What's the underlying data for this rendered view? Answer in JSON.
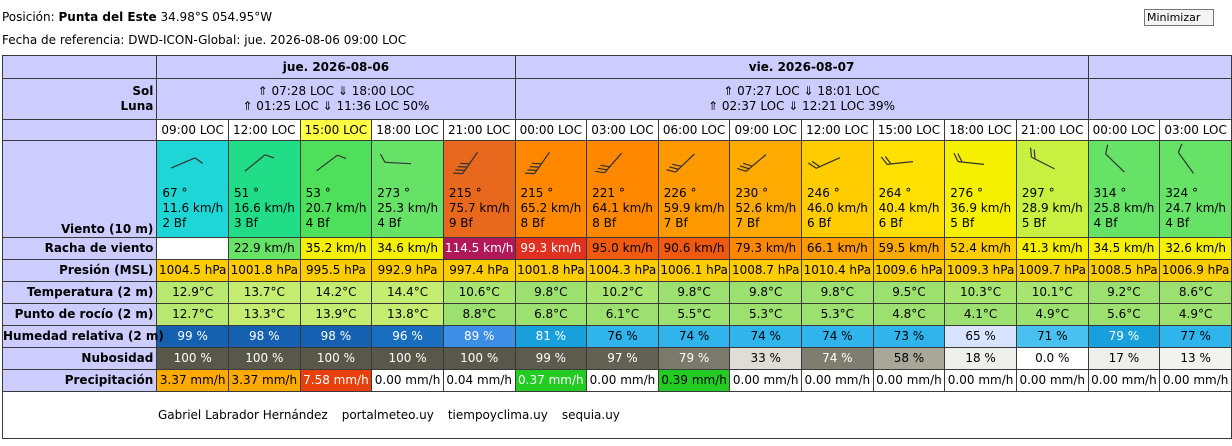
{
  "header": {
    "position_label": "Posición:",
    "position_name": "Punta del Este",
    "position_coords": "34.98°S 054.95°W",
    "reference_label": "Fecha de referencia:",
    "reference_value": "DWD-ICON-Global: jue. 2026-08-06 09:00 LOC",
    "minimize_button": "Minimizar"
  },
  "row_labels": {
    "sun_label": "Sol",
    "moon_label": "Luna",
    "wind": "Viento (10 m)",
    "gust": "Racha de viento",
    "pressure": "Presión (MSL)",
    "temperature": "Temperatura (2 m)",
    "dewpoint": "Punto de rocío (2 m)",
    "humidity": "Humedad relativa (2 m)",
    "cloud": "Nubosidad",
    "precip": "Precipitación"
  },
  "days": [
    {
      "label": "jue. 2026-08-06",
      "sun": "⇑ 07:28 LOC ⇓ 18:00 LOC",
      "moon": "⇑ 01:25 LOC ⇓ 11:36 LOC  50%"
    },
    {
      "label": "vie. 2026-08-07",
      "sun": "⇑ 07:27 LOC ⇓ 18:01 LOC",
      "moon": "⇑ 02:37 LOC ⇓ 12:21 LOC  39%"
    }
  ],
  "times": [
    "09:00 LOC",
    "12:00 LOC",
    "15:00 LOC",
    "18:00 LOC",
    "21:00 LOC",
    "00:00 LOC",
    "03:00 LOC",
    "06:00 LOC",
    "09:00 LOC",
    "12:00 LOC",
    "15:00 LOC",
    "18:00 LOC",
    "21:00 LOC",
    "00:00 LOC",
    "03:00 LOC"
  ],
  "wind": [
    {
      "dir": "67 °",
      "dir_deg": 67,
      "speed": "11.6  km/h",
      "bf": "2 Bf",
      "color": "#1fd6d6"
    },
    {
      "dir": "51 °",
      "dir_deg": 51,
      "speed": "16.6  km/h",
      "bf": "3 Bf",
      "color": "#22dd88"
    },
    {
      "dir": "53 °",
      "dir_deg": 53,
      "speed": "20.7  km/h",
      "bf": "4 Bf",
      "color": "#4ee05a"
    },
    {
      "dir": "273 °",
      "dir_deg": 273,
      "speed": "25.3  km/h",
      "bf": "4 Bf",
      "color": "#66e366"
    },
    {
      "dir": "215 °",
      "dir_deg": 215,
      "speed": "75.7  km/h",
      "bf": "9 Bf",
      "color": "#e8691e"
    },
    {
      "dir": "215 °",
      "dir_deg": 215,
      "speed": "65.2  km/h",
      "bf": "8 Bf",
      "color": "#ff8800"
    },
    {
      "dir": "221 °",
      "dir_deg": 221,
      "speed": "64.1  km/h",
      "bf": "8 Bf",
      "color": "#ff8800"
    },
    {
      "dir": "226 °",
      "dir_deg": 226,
      "speed": "59.9  km/h",
      "bf": "7 Bf",
      "color": "#ff9900"
    },
    {
      "dir": "230 °",
      "dir_deg": 230,
      "speed": "52.6  km/h",
      "bf": "7 Bf",
      "color": "#ffaa00"
    },
    {
      "dir": "246 °",
      "dir_deg": 246,
      "speed": "46.0  km/h",
      "bf": "6 Bf",
      "color": "#ffcc00"
    },
    {
      "dir": "264 °",
      "dir_deg": 264,
      "speed": "40.4  km/h",
      "bf": "6 Bf",
      "color": "#ffe000"
    },
    {
      "dir": "276 °",
      "dir_deg": 276,
      "speed": "36.9  km/h",
      "bf": "5 Bf",
      "color": "#f4f000"
    },
    {
      "dir": "297 °",
      "dir_deg": 297,
      "speed": "28.9  km/h",
      "bf": "5 Bf",
      "color": "#c8f040"
    },
    {
      "dir": "314 °",
      "dir_deg": 314,
      "speed": "25.8  km/h",
      "bf": "4 Bf",
      "color": "#66e366"
    },
    {
      "dir": "324 °",
      "dir_deg": 324,
      "speed": "24.7  km/h",
      "bf": "4 Bf",
      "color": "#66e366"
    }
  ],
  "gust": [
    {
      "v": "",
      "bg": "#ffffff",
      "fg": "#000"
    },
    {
      "v": "22.9  km/h",
      "bg": "#66e366",
      "fg": "#000"
    },
    {
      "v": "35.2  km/h",
      "bg": "#f4f000",
      "fg": "#000"
    },
    {
      "v": "34.6  km/h",
      "bg": "#f4f000",
      "fg": "#000"
    },
    {
      "v": "114.5  km/h",
      "bg": "#b0185a",
      "fg": "#fff"
    },
    {
      "v": "99.3  km/h",
      "bg": "#e03020",
      "fg": "#fff"
    },
    {
      "v": "95.0  km/h",
      "bg": "#f05a10",
      "fg": "#000"
    },
    {
      "v": "90.6  km/h",
      "bg": "#f05a10",
      "fg": "#000"
    },
    {
      "v": "79.3  km/h",
      "bg": "#ff8800",
      "fg": "#000"
    },
    {
      "v": "66.1  km/h",
      "bg": "#ff9900",
      "fg": "#000"
    },
    {
      "v": "59.5  km/h",
      "bg": "#ffaa00",
      "fg": "#000"
    },
    {
      "v": "52.4  km/h",
      "bg": "#ffcc00",
      "fg": "#000"
    },
    {
      "v": "41.3  km/h",
      "bg": "#f4f000",
      "fg": "#000"
    },
    {
      "v": "34.5  km/h",
      "bg": "#f4f000",
      "fg": "#000"
    },
    {
      "v": "32.6  km/h",
      "bg": "#f4f000",
      "fg": "#000"
    }
  ],
  "pressure": [
    {
      "v": "1004.5 hPa",
      "bg": "#ffcc00"
    },
    {
      "v": "1001.8 hPa",
      "bg": "#ffcc00"
    },
    {
      "v": "995.5 hPa",
      "bg": "#ffcc00"
    },
    {
      "v": "992.9 hPa",
      "bg": "#ffcc00"
    },
    {
      "v": "997.4 hPa",
      "bg": "#ffcc00"
    },
    {
      "v": "1001.8 hPa",
      "bg": "#ffcc00"
    },
    {
      "v": "1004.3 hPa",
      "bg": "#ffcc00"
    },
    {
      "v": "1006.1 hPa",
      "bg": "#ffcc00"
    },
    {
      "v": "1008.7 hPa",
      "bg": "#ffcc00"
    },
    {
      "v": "1010.4 hPa",
      "bg": "#ffcc00"
    },
    {
      "v": "1009.6 hPa",
      "bg": "#ffcc00"
    },
    {
      "v": "1009.3 hPa",
      "bg": "#ffcc00"
    },
    {
      "v": "1009.7 hPa",
      "bg": "#ffcc00"
    },
    {
      "v": "1008.5 hPa",
      "bg": "#ffcc00"
    },
    {
      "v": "1006.9 hPa",
      "bg": "#ffcc00"
    }
  ],
  "temperature": [
    {
      "v": "12.9°C",
      "bg": "#b8e870"
    },
    {
      "v": "13.7°C",
      "bg": "#c4ec70"
    },
    {
      "v": "14.2°C",
      "bg": "#c4ec70"
    },
    {
      "v": "14.4°C",
      "bg": "#c4ec70"
    },
    {
      "v": "10.6°C",
      "bg": "#a8e470"
    },
    {
      "v": "9.8°C",
      "bg": "#9ce070"
    },
    {
      "v": "10.2°C",
      "bg": "#a8e470"
    },
    {
      "v": "9.8°C",
      "bg": "#9ce070"
    },
    {
      "v": "9.8°C",
      "bg": "#9ce070"
    },
    {
      "v": "9.8°C",
      "bg": "#9ce070"
    },
    {
      "v": "9.5°C",
      "bg": "#9ce070"
    },
    {
      "v": "10.3°C",
      "bg": "#a8e470"
    },
    {
      "v": "10.1°C",
      "bg": "#a8e470"
    },
    {
      "v": "9.2°C",
      "bg": "#9ce070"
    },
    {
      "v": "8.6°C",
      "bg": "#9ce070"
    }
  ],
  "dewpoint": [
    {
      "v": "12.7°C",
      "bg": "#b8e870"
    },
    {
      "v": "13.3°C",
      "bg": "#c4ec70"
    },
    {
      "v": "13.9°C",
      "bg": "#c4ec70"
    },
    {
      "v": "13.8°C",
      "bg": "#c4ec70"
    },
    {
      "v": "8.8°C",
      "bg": "#9ce070"
    },
    {
      "v": "6.8°C",
      "bg": "#9ce070"
    },
    {
      "v": "6.1°C",
      "bg": "#9ce070"
    },
    {
      "v": "5.5°C",
      "bg": "#9ce070"
    },
    {
      "v": "5.3°C",
      "bg": "#9ce070"
    },
    {
      "v": "5.3°C",
      "bg": "#9ce070"
    },
    {
      "v": "4.8°C",
      "bg": "#9ce070"
    },
    {
      "v": "4.1°C",
      "bg": "#9ce070"
    },
    {
      "v": "4.9°C",
      "bg": "#9ce070"
    },
    {
      "v": "5.6°C",
      "bg": "#9ce070"
    },
    {
      "v": "4.9°C",
      "bg": "#9ce070"
    }
  ],
  "humidity": [
    {
      "v": "99 %",
      "bg": "#1560b0",
      "fg": "#fff"
    },
    {
      "v": "98 %",
      "bg": "#1560b0",
      "fg": "#fff"
    },
    {
      "v": "98 %",
      "bg": "#1560b0",
      "fg": "#fff"
    },
    {
      "v": "96 %",
      "bg": "#1a6ec0",
      "fg": "#fff"
    },
    {
      "v": "89 %",
      "bg": "#3c8ee6",
      "fg": "#fff"
    },
    {
      "v": "81 %",
      "bg": "#18a0dc",
      "fg": "#fff"
    },
    {
      "v": "76 %",
      "bg": "#30b4ec",
      "fg": "#000"
    },
    {
      "v": "74 %",
      "bg": "#30b4ec",
      "fg": "#000"
    },
    {
      "v": "74 %",
      "bg": "#30b4ec",
      "fg": "#000"
    },
    {
      "v": "74 %",
      "bg": "#30b4ec",
      "fg": "#000"
    },
    {
      "v": "73 %",
      "bg": "#30b4ec",
      "fg": "#000"
    },
    {
      "v": "65 %",
      "bg": "#d8e4ff",
      "fg": "#000"
    },
    {
      "v": "71 %",
      "bg": "#48c0f0",
      "fg": "#000"
    },
    {
      "v": "79 %",
      "bg": "#18a0dc",
      "fg": "#fff"
    },
    {
      "v": "77 %",
      "bg": "#30b4ec",
      "fg": "#000"
    }
  ],
  "cloud": [
    {
      "v": "100 %",
      "bg": "#58584a",
      "fg": "#fff"
    },
    {
      "v": "100 %",
      "bg": "#58584a",
      "fg": "#fff"
    },
    {
      "v": "100 %",
      "bg": "#58584a",
      "fg": "#fff"
    },
    {
      "v": "100 %",
      "bg": "#58584a",
      "fg": "#fff"
    },
    {
      "v": "100 %",
      "bg": "#58584a",
      "fg": "#fff"
    },
    {
      "v": "99 %",
      "bg": "#5c5c4e",
      "fg": "#fff"
    },
    {
      "v": "97 %",
      "bg": "#626254",
      "fg": "#fff"
    },
    {
      "v": "79 %",
      "bg": "#7a7a6c",
      "fg": "#fff"
    },
    {
      "v": "33 %",
      "bg": "#deded6",
      "fg": "#000"
    },
    {
      "v": "74 %",
      "bg": "#7e7e70",
      "fg": "#fff"
    },
    {
      "v": "58 %",
      "bg": "#a8a89a",
      "fg": "#000"
    },
    {
      "v": "18 %",
      "bg": "#eeeeea",
      "fg": "#000"
    },
    {
      "v": "0.0 %",
      "bg": "#ffffff",
      "fg": "#000"
    },
    {
      "v": "17 %",
      "bg": "#eeeeea",
      "fg": "#000"
    },
    {
      "v": "13 %",
      "bg": "#f2f2ee",
      "fg": "#000"
    }
  ],
  "precip": [
    {
      "v": "3.37 mm/h",
      "bg": "#ffaa00",
      "fg": "#000"
    },
    {
      "v": "3.37 mm/h",
      "bg": "#ffaa00",
      "fg": "#000"
    },
    {
      "v": "7.58 mm/h",
      "bg": "#e8400c",
      "fg": "#fff"
    },
    {
      "v": "0.00 mm/h",
      "bg": "#ffffff",
      "fg": "#000"
    },
    {
      "v": "0.04 mm/h",
      "bg": "#ffffff",
      "fg": "#000"
    },
    {
      "v": "0.37 mm/h",
      "bg": "#22cc22",
      "fg": "#fff"
    },
    {
      "v": "0.00 mm/h",
      "bg": "#ffffff",
      "fg": "#000"
    },
    {
      "v": "0.39 mm/h",
      "bg": "#22cc22",
      "fg": "#000"
    },
    {
      "v": "0.00 mm/h",
      "bg": "#ffffff",
      "fg": "#000"
    },
    {
      "v": "0.00 mm/h",
      "bg": "#ffffff",
      "fg": "#000"
    },
    {
      "v": "0.00 mm/h",
      "bg": "#ffffff",
      "fg": "#000"
    },
    {
      "v": "0.00 mm/h",
      "bg": "#ffffff",
      "fg": "#000"
    },
    {
      "v": "0.00 mm/h",
      "bg": "#ffffff",
      "fg": "#000"
    },
    {
      "v": "0.00 mm/h",
      "bg": "#ffffff",
      "fg": "#000"
    },
    {
      "v": "0.00 mm/h",
      "bg": "#ffffff",
      "fg": "#000"
    }
  ],
  "credits": [
    "Gabriel Labrador Hernández",
    "portalmeteo.uy",
    "tiempoyclima.uy",
    "sequia.uy"
  ],
  "colors": {
    "label_bg": "#ccccff",
    "highlight_time": "#ffff44"
  }
}
